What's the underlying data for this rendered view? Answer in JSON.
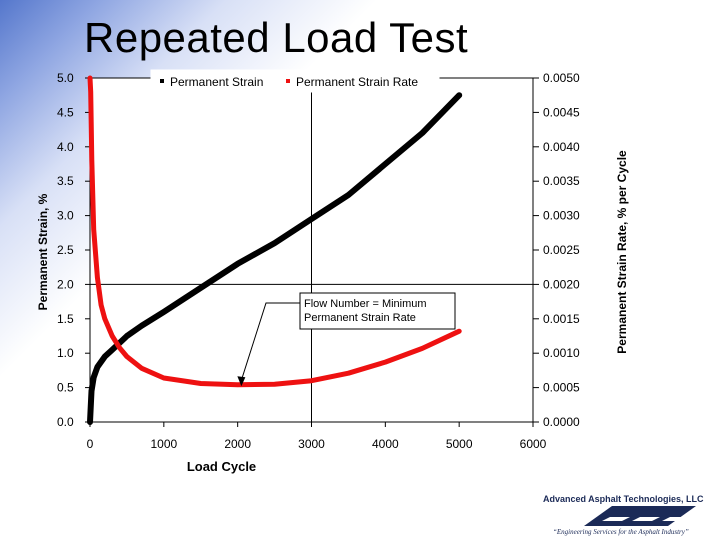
{
  "slide": {
    "title": "Repeated Load Test"
  },
  "chart_data": {
    "type": "line",
    "title": "",
    "xlabel": "Load Cycle",
    "ylabel": "Permanent Strain, %",
    "y2label": "Permanent Strain Rate, % per Cycle",
    "xlim": [
      0,
      6000
    ],
    "ylim": [
      0,
      5.0
    ],
    "y2lim": [
      0,
      0.005
    ],
    "x_ticks": [
      "0",
      "1000",
      "2000",
      "3000",
      "4000",
      "5000",
      "6000"
    ],
    "y_ticks": [
      "0.0",
      "0.5",
      "1.0",
      "1.5",
      "2.0",
      "2.5",
      "3.0",
      "3.5",
      "4.0",
      "4.5",
      "5.0"
    ],
    "y2_ticks": [
      "0.0000",
      "0.0005",
      "0.0010",
      "0.0015",
      "0.0020",
      "0.0025",
      "0.0030",
      "0.0035",
      "0.0040",
      "0.0045",
      "0.0050"
    ],
    "grid": false,
    "reference_lines": {
      "x": 3000,
      "y": 2.0
    },
    "legend": {
      "position": "top",
      "entries": [
        "Permanent Strain",
        "Permanent Strain Rate"
      ]
    },
    "series": [
      {
        "name": "Permanent Strain",
        "axis": "left",
        "color": "#000000",
        "x": [
          0,
          20,
          50,
          100,
          200,
          300,
          500,
          700,
          1000,
          1500,
          2000,
          2500,
          3000,
          3500,
          4000,
          4500,
          5000
        ],
        "y": [
          0,
          0.45,
          0.65,
          0.8,
          0.95,
          1.05,
          1.25,
          1.4,
          1.6,
          1.95,
          2.3,
          2.6,
          2.95,
          3.3,
          3.75,
          4.2,
          4.75
        ]
      },
      {
        "name": "Permanent Strain Rate",
        "axis": "right",
        "color": "#ee1111",
        "x": [
          0,
          10,
          25,
          50,
          100,
          150,
          200,
          300,
          400,
          500,
          700,
          1000,
          1500,
          2000,
          2500,
          3000,
          3500,
          4000,
          4500,
          5000
        ],
        "y": [
          0.0052,
          0.0048,
          0.0038,
          0.0028,
          0.0021,
          0.0017,
          0.0015,
          0.00125,
          0.00108,
          0.00095,
          0.00078,
          0.00064,
          0.00056,
          0.00054,
          0.00055,
          0.0006,
          0.00071,
          0.00087,
          0.00107,
          0.00132
        ]
      }
    ],
    "annotation": {
      "lines": [
        "Flow Number = Minimum",
        "Permanent Strain Rate"
      ],
      "arrow_to": {
        "x": 2050,
        "y2": 0.00052
      }
    }
  },
  "footer": {
    "company": "Advanced Asphalt Technologies, LLC",
    "tagline": "“Engineering Services for the Asphalt Industry”"
  }
}
